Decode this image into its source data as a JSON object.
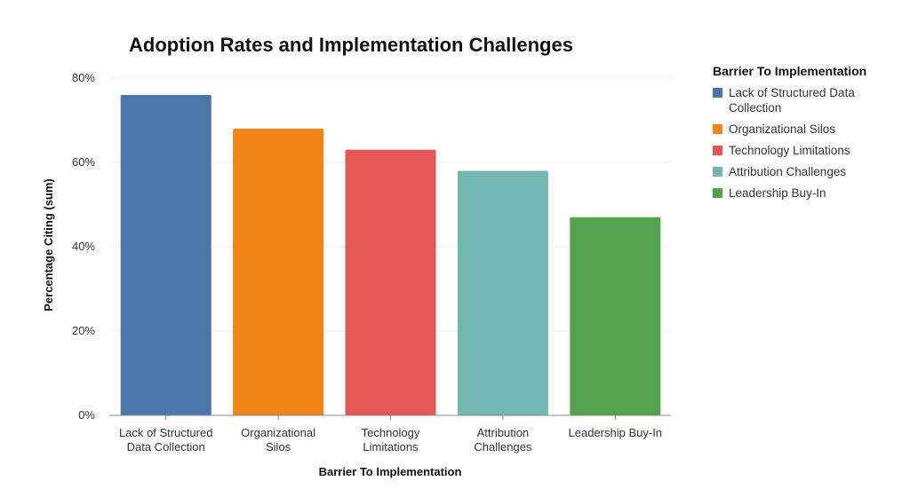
{
  "chart_data": {
    "type": "bar",
    "title": "Adoption Rates and Implementation Challenges",
    "xlabel": "Barrier To Implementation",
    "ylabel": "Percentage Citing (sum)",
    "ylim": [
      0,
      80
    ],
    "yticks": [
      "0%",
      "20%",
      "40%",
      "60%",
      "80%"
    ],
    "ytick_values": [
      0,
      20,
      40,
      60,
      80
    ],
    "grid": true,
    "categories": [
      "Lack of Structured Data Collection",
      "Organizational Silos",
      "Technology Limitations",
      "Attribution Challenges",
      "Leadership Buy-In"
    ],
    "category_tick_lines": [
      [
        "Lack of Structured",
        "Data Collection"
      ],
      [
        "Organizational",
        "Silos"
      ],
      [
        "Technology",
        "Limitations"
      ],
      [
        "Attribution",
        "Challenges"
      ],
      [
        "Leadership Buy-In"
      ]
    ],
    "values": [
      76,
      68,
      63,
      58,
      47
    ],
    "colors": [
      "#4a76a8",
      "#f28518",
      "#e45756",
      "#72b7b2",
      "#54a24b"
    ],
    "legend": {
      "title": "Barrier To Implementation",
      "position": "right",
      "entries": [
        "Lack of Structured Data Collection",
        "Organizational Silos",
        "Technology Limitations",
        "Attribution Challenges",
        "Leadership Buy-In"
      ]
    }
  }
}
